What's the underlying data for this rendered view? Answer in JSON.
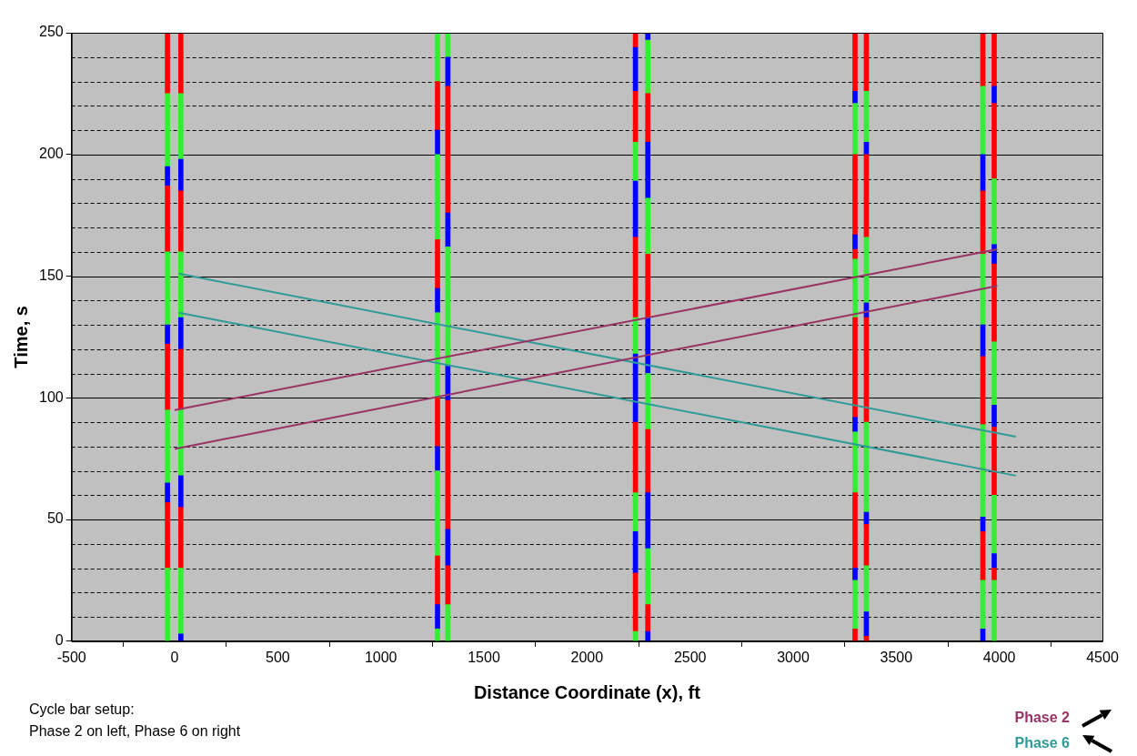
{
  "chart_data": {
    "type": "bar",
    "stacked": true,
    "xlabel": "Distance Coordinate (x), ft",
    "ylabel": "Time, s",
    "xlim": [
      -500,
      4500
    ],
    "xticks": [
      -500,
      0,
      500,
      1000,
      1500,
      2000,
      2500,
      3000,
      3500,
      4000,
      4500
    ],
    "ylim": [
      0,
      250
    ],
    "yticks": [
      0,
      {
        "value": 10,
        "label": null
      },
      {
        "value": 20,
        "label": null
      },
      {
        "value": 30,
        "label": null
      },
      {
        "value": 40,
        "label": null
      },
      50,
      {
        "value": 60,
        "label": null
      },
      {
        "value": 70,
        "label": null
      },
      {
        "value": 80,
        "label": null
      },
      {
        "value": 90,
        "label": null
      },
      100,
      {
        "value": 110,
        "label": null
      },
      {
        "value": 120,
        "label": null
      },
      {
        "value": 130,
        "label": null
      },
      {
        "value": 140,
        "label": null
      },
      150,
      {
        "value": 160,
        "label": null
      },
      {
        "value": 170,
        "label": null
      },
      {
        "value": 180,
        "label": null
      },
      {
        "value": 190,
        "label": null
      },
      200,
      {
        "value": 210,
        "label": null
      },
      {
        "value": 220,
        "label": null
      },
      {
        "value": 230,
        "label": null
      },
      {
        "value": 240,
        "label": null
      },
      250
    ],
    "grid": "y",
    "legend": "bottom right",
    "annotations": [
      "Cycle bar setup:",
      "Phase 2 on left,  Phase 6 on right"
    ],
    "x": [
      -35,
      30,
      1275,
      1325,
      2235,
      2295,
      3300,
      3355,
      3920,
      3975
    ],
    "series": [
      {
        "values": [
          30,
          3,
          5,
          15,
          4,
          4,
          5,
          2,
          5,
          25
        ],
        "colors": [
          "#33ee33",
          "#0000ff",
          "#33ee33",
          "#33ee33",
          "#33ee33",
          "#0000ff",
          "#ff0000",
          "#ff0000",
          "#0000ff",
          "#33ee33"
        ]
      },
      {
        "values": [
          27,
          27,
          10,
          16,
          24,
          11,
          20,
          10,
          20,
          5
        ],
        "colors": [
          "#ff0000",
          "#33ee33",
          "#0000ff",
          "#ff0000",
          "#ff0000",
          "#ff0000",
          "#33ee33",
          "#0000ff",
          "#33ee33",
          "#ff0000"
        ]
      },
      {
        "values": [
          8,
          25,
          20,
          15,
          17,
          23,
          5,
          19,
          20,
          6
        ],
        "colors": [
          "#0000ff",
          "#ff0000",
          "#ff0000",
          "#0000ff",
          "#0000ff",
          "#33ee33",
          "#0000ff",
          "#33ee33",
          "#ff0000",
          "#0000ff"
        ]
      },
      {
        "values": [
          30,
          13,
          35,
          53,
          16,
          23,
          31,
          17,
          6,
          24
        ],
        "colors": [
          "#33ee33",
          "#0000ff",
          "#33ee33",
          "#ff0000",
          "#33ee33",
          "#0000ff",
          "#ff0000",
          "#ff0000",
          "#0000ff",
          "#33ee33"
        ]
      },
      {
        "values": [
          27,
          27,
          10,
          14,
          29,
          26,
          25,
          5,
          38,
          28
        ],
        "colors": [
          "#ff0000",
          "#33ee33",
          "#0000ff",
          "#0000ff",
          "#ff0000",
          "#ff0000",
          "#33ee33",
          "#0000ff",
          "#33ee33",
          "#ff0000"
        ]
      },
      {
        "values": [
          8,
          25,
          20,
          49,
          28,
          23,
          6,
          37,
          28,
          9
        ],
        "colors": [
          "#0000ff",
          "#ff0000",
          "#ff0000",
          "#33ee33",
          "#0000ff",
          "#33ee33",
          "#0000ff",
          "#33ee33",
          "#ff0000",
          "#0000ff"
        ]
      },
      {
        "values": [
          30,
          13,
          35,
          14,
          15,
          23,
          41,
          43,
          13,
          26
        ],
        "colors": [
          "#33ee33",
          "#0000ff",
          "#33ee33",
          "#0000ff",
          "#33ee33",
          "#0000ff",
          "#ff0000",
          "#ff0000",
          "#0000ff",
          "#33ee33"
        ]
      },
      {
        "values": [
          27,
          27,
          10,
          52,
          33,
          26,
          24,
          6,
          29,
          32
        ],
        "colors": [
          "#ff0000",
          "#33ee33",
          "#0000ff",
          "#ff0000",
          "#ff0000",
          "#ff0000",
          "#33ee33",
          "#0000ff",
          "#33ee33",
          "#ff0000"
        ]
      },
      {
        "values": [
          8,
          25,
          20,
          12,
          23,
          23,
          4,
          27,
          26,
          8
        ],
        "colors": [
          "#0000ff",
          "#ff0000",
          "#ff0000",
          "#0000ff",
          "#0000ff",
          "#33ee33",
          "#ff0000",
          "#33ee33",
          "#ff0000",
          "#0000ff"
        ]
      },
      {
        "values": [
          30,
          13,
          35,
          10,
          16,
          23,
          6,
          34,
          15,
          27
        ],
        "colors": [
          "#33ee33",
          "#0000ff",
          "#33ee33",
          "#33ee33",
          "#33ee33",
          "#0000ff",
          "#0000ff",
          "#ff0000",
          "#0000ff",
          "#33ee33"
        ]
      },
      {
        "values": [
          25,
          27,
          10,
          null,
          21,
          20,
          33,
          5,
          28,
          31
        ],
        "colors": [
          "#ff0000",
          "#33ee33",
          "#0000ff",
          "#ff0000",
          "#ff0000",
          "#ff0000",
          "#ff0000",
          "#0000ff",
          "#33ee33",
          "#ff0000"
        ]
      },
      {
        "values": [
          null,
          25,
          20,
          null,
          18,
          22,
          21,
          21,
          22,
          7
        ],
        "colors": [
          "#ff0000",
          "#ff0000",
          "#ff0000",
          "#ff0000",
          "#0000ff",
          "#33ee33",
          "#33ee33",
          "#33ee33",
          "#ff0000",
          "#0000ff"
        ]
      },
      {
        "values": [
          null,
          null,
          20,
          null,
          6,
          3,
          5,
          24,
          null,
          22
        ],
        "colors": [
          "#ff0000",
          "#ff0000",
          "#33ee33",
          "#ff0000",
          "#ff0000",
          "#0000ff",
          "#0000ff",
          "#ff0000",
          "#ff0000",
          "#ff0000"
        ]
      },
      {
        "values": [
          null,
          null,
          null,
          null,
          null,
          null,
          24,
          null,
          null,
          null
        ],
        "colors": [
          "#ff0000",
          "#ff0000",
          "#ff0000",
          "#ff0000",
          "#ff0000",
          "#ff0000",
          "#ff0000",
          "#ff0000",
          "#ff0000",
          "#ff0000"
        ]
      },
      {
        "type": "line",
        "name": "Phase 2",
        "color": "#993366",
        "x": [
          0,
          3990
        ],
        "values": [
          95,
          161
        ]
      },
      {
        "type": "line",
        "color": "#993366",
        "x": [
          0,
          3990
        ],
        "values": [
          79,
          146
        ]
      },
      {
        "type": "line",
        "name": "Phase 6",
        "color": "#2f9a96",
        "x": [
          20,
          4080
        ],
        "values": [
          151,
          84
        ]
      },
      {
        "type": "line",
        "color": "#2f9a96",
        "x": [
          20,
          4080
        ],
        "values": [
          135,
          68
        ]
      }
    ]
  }
}
